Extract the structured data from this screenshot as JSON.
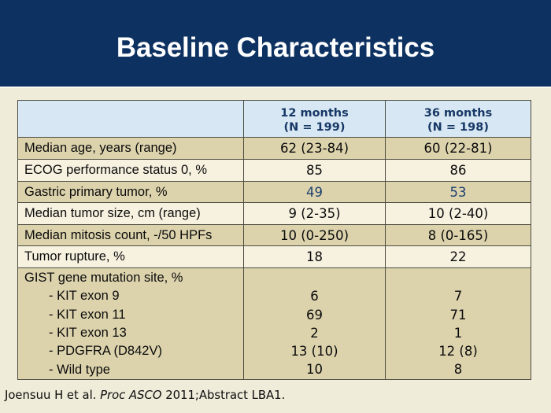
{
  "slide": {
    "title": "Baseline Characteristics",
    "footer": {
      "pre": "Joensuu H et al. ",
      "italic": "Proc ASCO",
      "post": " 2011;Abstract LBA1."
    }
  },
  "table": {
    "header": {
      "col1": "",
      "col2_line1": "12 months",
      "col2_line2": "(N = 199)",
      "col3_line1": "36 months",
      "col3_line2": "(N = 198)"
    },
    "rows": [
      {
        "label": "Median age, years (range)",
        "v1": "62 (23-84)",
        "v2": "60 (22-81)"
      },
      {
        "label": "ECOG performance status 0, %",
        "v1": "85",
        "v2": "86"
      },
      {
        "label": "Gastric primary tumor, %",
        "v1": "49",
        "v2": "53"
      },
      {
        "label": "Median tumor size, cm (range)",
        "v1": "9 (2-35)",
        "v2": "10 (2-40)"
      },
      {
        "label": "Median mitosis count, -/50 HPFs",
        "v1": "10 (0-250)",
        "v2": "8 (0-165)"
      },
      {
        "label": "Tumor rupture, %",
        "v1": "18",
        "v2": "22"
      }
    ],
    "group": {
      "label": "GIST gene mutation site, %",
      "items": [
        {
          "label": "- KIT exon 9",
          "v1": "6",
          "v2": "7"
        },
        {
          "label": "- KIT exon 11",
          "v1": "69",
          "v2": "71"
        },
        {
          "label": "- KIT exon 13",
          "v1": "2",
          "v2": "1"
        },
        {
          "label": "- PDGFRA (D842V)",
          "v1": "13 (10)",
          "v2": "12 (8)"
        },
        {
          "label": "- Wild type",
          "v1": "10",
          "v2": "8"
        }
      ]
    }
  },
  "colors": {
    "navy": "#0d3262",
    "page-bg": "#f0ecda",
    "head-bg": "#d7e7f3",
    "head-text": "#173866",
    "tan": "#dcd3ad",
    "cream": "#f7f2e0",
    "grid": "#4c4c41",
    "value-blue": "#1d3f6e",
    "title-color": "#ffffff"
  }
}
